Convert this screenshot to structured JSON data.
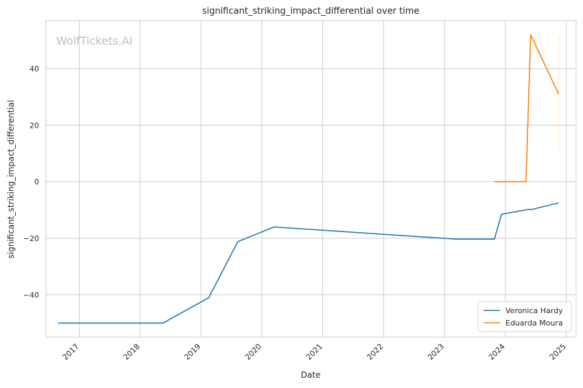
{
  "chart_data": {
    "type": "line",
    "title": "significant_striking_impact_differential over time",
    "xlabel": "Date",
    "ylabel": "significant_striking_impact_differential",
    "watermark": "WolfTickets.AI",
    "x_ticks": [
      "2017",
      "2018",
      "2019",
      "2020",
      "2021",
      "2022",
      "2023",
      "2024",
      "2025"
    ],
    "y_ticks": [
      -40,
      -20,
      0,
      20,
      40
    ],
    "xlim": [
      "2016-06-15",
      "2025-03-01"
    ],
    "ylim": [
      -55,
      57
    ],
    "grid": true,
    "legend_position": "lower-right",
    "series": [
      {
        "name": "Veronica Hardy",
        "color": "#1f77b4",
        "points": [
          {
            "x": "2016-08-27",
            "y": -50
          },
          {
            "x": "2018-05-19",
            "y": -50
          },
          {
            "x": "2019-02-17",
            "y": -41
          },
          {
            "x": "2019-08-10",
            "y": -21.2
          },
          {
            "x": "2020-03-14",
            "y": -16
          },
          {
            "x": "2023-03-11",
            "y": -20.3
          },
          {
            "x": "2023-10-28",
            "y": -20.3
          },
          {
            "x": "2023-12-09",
            "y": -11.5
          },
          {
            "x": "2024-05-18",
            "y": -9.8
          },
          {
            "x": "2024-06-08",
            "y": -9.8
          },
          {
            "x": "2024-11-16",
            "y": -7.5
          }
        ]
      },
      {
        "name": "Eduarda Moura",
        "color": "#ff7f0e",
        "points": [
          {
            "x": "2023-10-28",
            "y": 0
          },
          {
            "x": "2024-05-04",
            "y": 0
          },
          {
            "x": "2024-06-01",
            "y": 52
          },
          {
            "x": "2024-11-16",
            "y": 31
          }
        ]
      }
    ]
  }
}
